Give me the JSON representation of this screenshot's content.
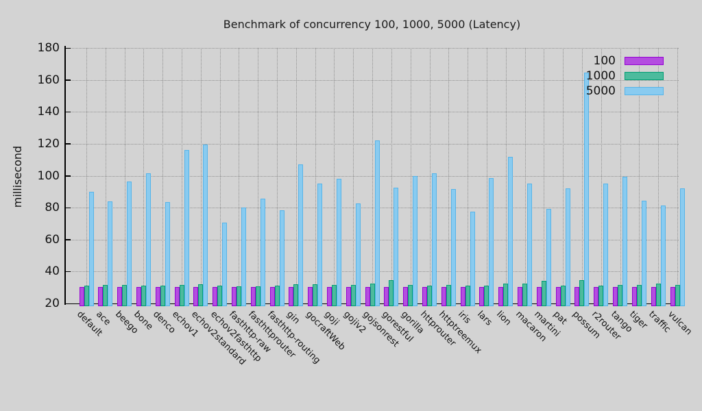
{
  "chart_data": {
    "type": "bar",
    "title": "Benchmark of concurrency 100, 1000, 5000 (Latency)",
    "ylabel": "millisecond",
    "xlabel": "",
    "ylim": [
      20,
      180
    ],
    "yticks": [
      20,
      40,
      60,
      80,
      100,
      120,
      140,
      160,
      180
    ],
    "grid": true,
    "legend_position": "top-right",
    "background_color": "#d3d3d3",
    "categories": [
      "default",
      "ace",
      "beego",
      "bone",
      "denco",
      "echov1",
      "echov2standard",
      "echov2fasthttp",
      "fasthttp-raw",
      "fasthttprouter",
      "fasthttp-routing",
      "gin",
      "gocraftWeb",
      "goji",
      "gojiv2",
      "gojsonrest",
      "gorestful",
      "gorilla",
      "httprouter",
      "httptreemux",
      "iris",
      "lars",
      "lion",
      "macaron",
      "martini",
      "pat",
      "possum",
      "r2router",
      "tango",
      "tiger",
      "traffic",
      "vulcan"
    ],
    "series": [
      {
        "name": "100",
        "border_color": "#9400d3",
        "fill_color": "#b44de0",
        "values": [
          30.3,
          30.3,
          30.3,
          30.3,
          30.3,
          30.4,
          30.4,
          30.3,
          30.2,
          30.2,
          30.3,
          30.4,
          30.4,
          30.3,
          30.4,
          30.4,
          30.5,
          30.4,
          30.3,
          30.4,
          30.3,
          30.3,
          30.4,
          30.5,
          30.5,
          30.3,
          30.5,
          30.3,
          30.4,
          30.4,
          30.4,
          30.4
        ]
      },
      {
        "name": "1000",
        "border_color": "#009e73",
        "fill_color": "#4dbb9d",
        "values": [
          31.2,
          31.5,
          31.6,
          31.2,
          31.3,
          31.5,
          31.9,
          31.2,
          30.8,
          30.9,
          31.1,
          31.8,
          31.8,
          31.4,
          31.7,
          32.4,
          34.4,
          31.6,
          31.2,
          31.5,
          31.0,
          31.0,
          32.3,
          32.6,
          34.2,
          31.3,
          34.5,
          31.3,
          31.6,
          31.5,
          32.6,
          31.7
        ]
      },
      {
        "name": "5000",
        "border_color": "#56b4e9",
        "fill_color": "#89cbf0",
        "values": [
          90,
          84,
          96.5,
          101.5,
          83.5,
          116,
          119.5,
          70.5,
          80,
          85.5,
          78.5,
          107,
          95,
          98,
          82.5,
          122,
          92.5,
          100,
          101.5,
          91.5,
          77.5,
          98.5,
          112,
          95,
          79,
          92,
          164.5,
          95,
          99.5,
          84.5,
          81.5,
          92
        ]
      }
    ]
  }
}
